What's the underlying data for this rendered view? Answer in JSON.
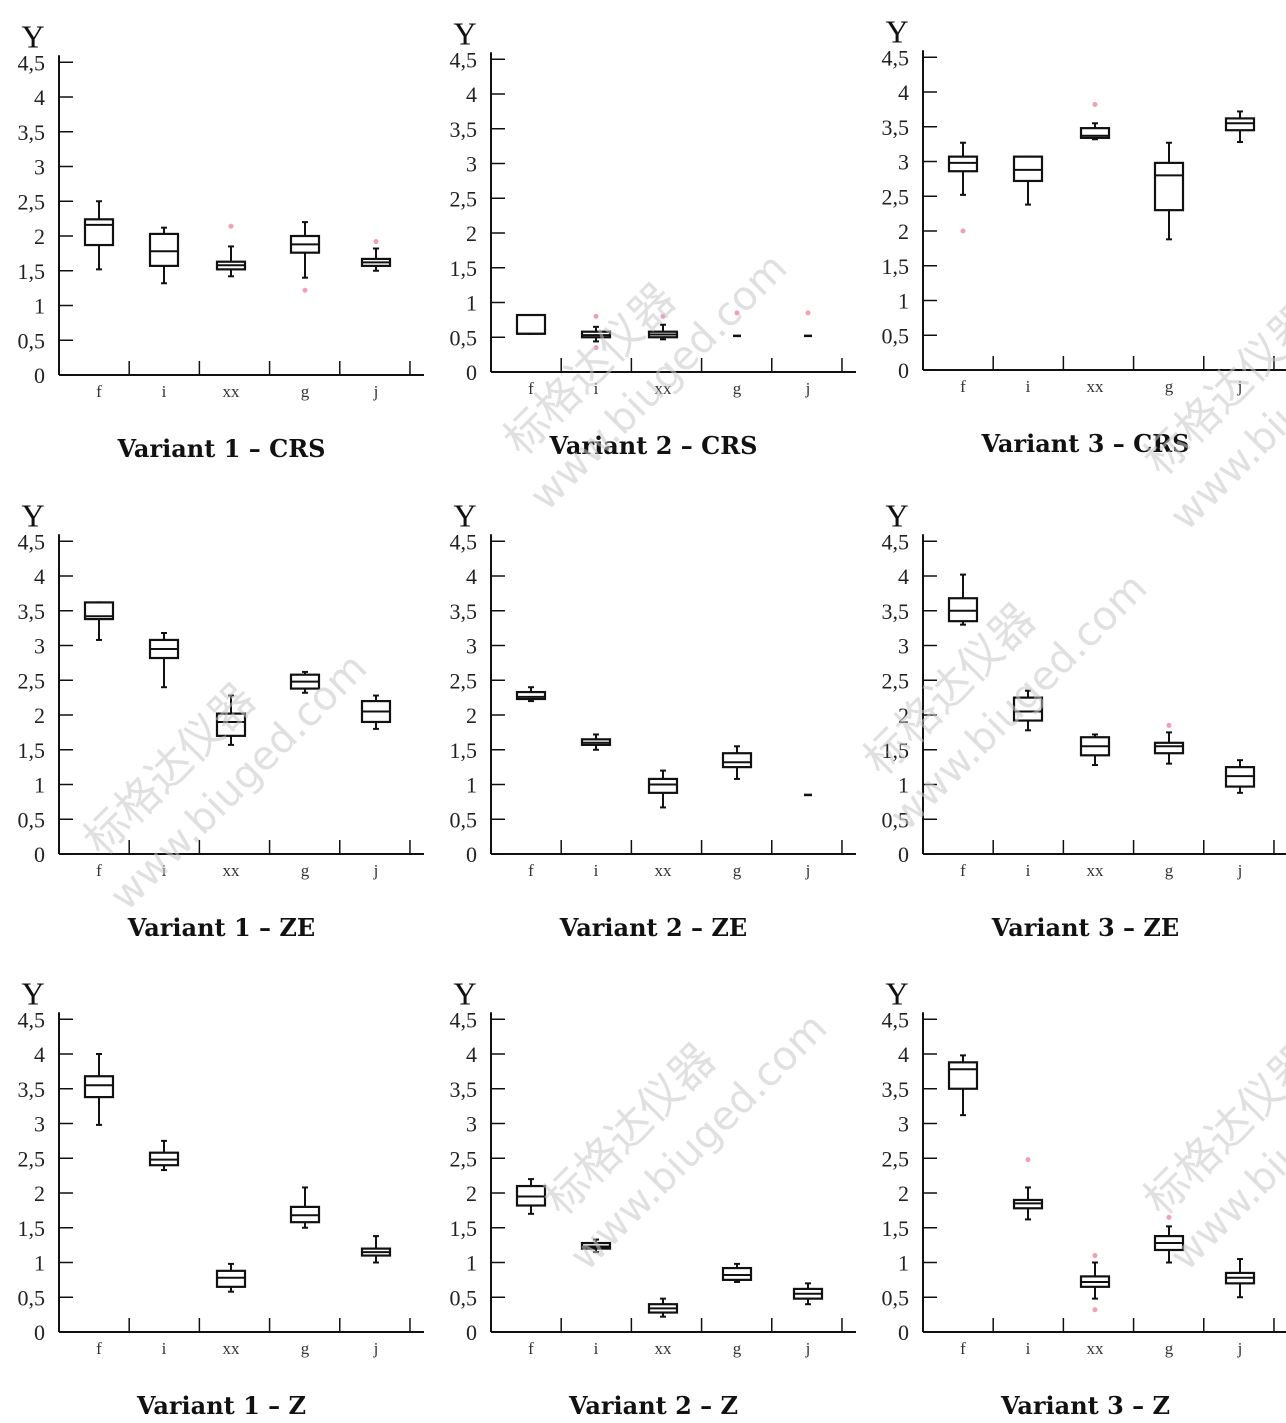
{
  "watermark": {
    "cn": "标格达仪器",
    "url": "www.biuged.com"
  },
  "chart_data": [
    {
      "type": "box",
      "title": "Variant 1 – CRS",
      "ylabel": "Y",
      "categories": [
        "f",
        "i",
        "xx",
        "g",
        "j"
      ],
      "y_ticks": [
        "0",
        "0,5",
        "1",
        "1,5",
        "2",
        "2,5",
        "3",
        "3,5",
        "4",
        "4,5"
      ],
      "ylim": [
        0,
        4.6
      ],
      "boxes": [
        {
          "min": 1.52,
          "q1": 1.87,
          "median": 2.16,
          "q3": 2.24,
          "max": 2.5,
          "outliers": []
        },
        {
          "min": 1.32,
          "q1": 1.57,
          "median": 1.78,
          "q3": 2.03,
          "max": 2.12,
          "outliers": []
        },
        {
          "min": 1.42,
          "q1": 1.52,
          "median": 1.58,
          "q3": 1.63,
          "max": 1.85,
          "outliers": [
            2.14
          ]
        },
        {
          "min": 1.4,
          "q1": 1.76,
          "median": 1.88,
          "q3": 2.0,
          "max": 2.2,
          "outliers": [
            1.22
          ]
        },
        {
          "min": 1.5,
          "q1": 1.57,
          "median": 1.62,
          "q3": 1.67,
          "max": 1.82,
          "outliers": [
            1.92
          ]
        }
      ]
    },
    {
      "type": "box",
      "title": "Variant 2 – CRS",
      "ylabel": "Y",
      "categories": [
        "f",
        "i",
        "xx",
        "g",
        "j"
      ],
      "y_ticks": [
        "0",
        "0,5",
        "1",
        "1,5",
        "2",
        "2,5",
        "3",
        "3,5",
        "4",
        "4,5"
      ],
      "ylim": [
        0,
        4.6
      ],
      "boxes": [
        {
          "min": 0.55,
          "q1": 0.55,
          "median": 0.55,
          "q3": 0.82,
          "max": 0.82,
          "outliers": []
        },
        {
          "min": 0.44,
          "q1": 0.5,
          "median": 0.53,
          "q3": 0.58,
          "max": 0.65,
          "outliers": [
            0.35,
            0.8
          ]
        },
        {
          "min": 0.47,
          "q1": 0.5,
          "median": 0.54,
          "q3": 0.58,
          "max": 0.68,
          "outliers": [
            0.8
          ]
        },
        {
          "min": 0.52,
          "q1": 0.52,
          "median": 0.52,
          "q3": 0.52,
          "max": 0.52,
          "outliers": [
            0.85
          ]
        },
        {
          "min": 0.52,
          "q1": 0.52,
          "median": 0.52,
          "q3": 0.52,
          "max": 0.52,
          "outliers": [
            0.85
          ]
        }
      ]
    },
    {
      "type": "box",
      "title": "Variant 3 – CRS",
      "ylabel": "Y",
      "categories": [
        "f",
        "i",
        "xx",
        "g",
        "j"
      ],
      "y_ticks": [
        "0",
        "0,5",
        "1",
        "1,5",
        "2",
        "2,5",
        "3",
        "3,5",
        "4",
        "4,5"
      ],
      "ylim": [
        0,
        4.6
      ],
      "boxes": [
        {
          "min": 2.52,
          "q1": 2.86,
          "median": 2.98,
          "q3": 3.07,
          "max": 3.27,
          "outliers": [
            2.0
          ]
        },
        {
          "min": 2.38,
          "q1": 2.72,
          "median": 2.88,
          "q3": 3.07,
          "max": 3.07,
          "outliers": []
        },
        {
          "min": 3.32,
          "q1": 3.34,
          "median": 3.37,
          "q3": 3.48,
          "max": 3.55,
          "outliers": [
            3.82
          ]
        },
        {
          "min": 1.88,
          "q1": 2.3,
          "median": 2.8,
          "q3": 2.98,
          "max": 3.27,
          "outliers": []
        },
        {
          "min": 3.28,
          "q1": 3.45,
          "median": 3.55,
          "q3": 3.62,
          "max": 3.72,
          "outliers": []
        }
      ]
    },
    {
      "type": "box",
      "title": "Variant 1 – ZE",
      "ylabel": "Y",
      "categories": [
        "f",
        "i",
        "xx",
        "g",
        "j"
      ],
      "y_ticks": [
        "0",
        "0,5",
        "1",
        "1,5",
        "2",
        "2,5",
        "3",
        "3,5",
        "4",
        "4,5"
      ],
      "ylim": [
        0,
        4.6
      ],
      "boxes": [
        {
          "min": 3.08,
          "q1": 3.38,
          "median": 3.42,
          "q3": 3.62,
          "max": 3.62,
          "outliers": []
        },
        {
          "min": 2.4,
          "q1": 2.82,
          "median": 2.95,
          "q3": 3.08,
          "max": 3.18,
          "outliers": []
        },
        {
          "min": 1.57,
          "q1": 1.7,
          "median": 1.9,
          "q3": 2.02,
          "max": 2.28,
          "outliers": []
        },
        {
          "min": 2.32,
          "q1": 2.38,
          "median": 2.48,
          "q3": 2.58,
          "max": 2.62,
          "outliers": []
        },
        {
          "min": 1.8,
          "q1": 1.9,
          "median": 2.05,
          "q3": 2.2,
          "max": 2.28,
          "outliers": []
        }
      ]
    },
    {
      "type": "box",
      "title": "Variant 2 – ZE",
      "ylabel": "Y",
      "categories": [
        "f",
        "i",
        "xx",
        "g",
        "j"
      ],
      "y_ticks": [
        "0",
        "0,5",
        "1",
        "1,5",
        "2",
        "2,5",
        "3",
        "3,5",
        "4",
        "4,5"
      ],
      "ylim": [
        0,
        4.6
      ],
      "boxes": [
        {
          "min": 2.2,
          "q1": 2.23,
          "median": 2.26,
          "q3": 2.33,
          "max": 2.4,
          "outliers": []
        },
        {
          "min": 1.5,
          "q1": 1.57,
          "median": 1.6,
          "q3": 1.65,
          "max": 1.72,
          "outliers": []
        },
        {
          "min": 0.67,
          "q1": 0.88,
          "median": 1.0,
          "q3": 1.08,
          "max": 1.2,
          "outliers": []
        },
        {
          "min": 1.08,
          "q1": 1.25,
          "median": 1.32,
          "q3": 1.45,
          "max": 1.55,
          "outliers": []
        },
        {
          "min": 0.85,
          "q1": 0.85,
          "median": 0.85,
          "q3": 0.85,
          "max": 0.85,
          "outliers": []
        }
      ]
    },
    {
      "type": "box",
      "title": "Variant 3 – ZE",
      "ylabel": "Y",
      "categories": [
        "f",
        "i",
        "xx",
        "g",
        "j"
      ],
      "y_ticks": [
        "0",
        "0,5",
        "1",
        "1,5",
        "2",
        "2,5",
        "3",
        "3,5",
        "4",
        "4,5"
      ],
      "ylim": [
        0,
        4.6
      ],
      "boxes": [
        {
          "min": 3.3,
          "q1": 3.35,
          "median": 3.5,
          "q3": 3.68,
          "max": 4.02,
          "outliers": []
        },
        {
          "min": 1.78,
          "q1": 1.92,
          "median": 2.05,
          "q3": 2.25,
          "max": 2.35,
          "outliers": []
        },
        {
          "min": 1.28,
          "q1": 1.42,
          "median": 1.55,
          "q3": 1.68,
          "max": 1.72,
          "outliers": []
        },
        {
          "min": 1.3,
          "q1": 1.45,
          "median": 1.55,
          "q3": 1.6,
          "max": 1.75,
          "outliers": [
            1.85
          ]
        },
        {
          "min": 0.88,
          "q1": 0.97,
          "median": 1.12,
          "q3": 1.25,
          "max": 1.35,
          "outliers": []
        }
      ]
    },
    {
      "type": "box",
      "title": "Variant 1 – Z",
      "ylabel": "Y",
      "categories": [
        "f",
        "i",
        "xx",
        "g",
        "j"
      ],
      "y_ticks": [
        "0",
        "0,5",
        "1",
        "1,5",
        "2",
        "2,5",
        "3",
        "3,5",
        "4",
        "4,5"
      ],
      "ylim": [
        0,
        4.6
      ],
      "boxes": [
        {
          "min": 2.98,
          "q1": 3.38,
          "median": 3.55,
          "q3": 3.68,
          "max": 4.0,
          "outliers": []
        },
        {
          "min": 2.33,
          "q1": 2.4,
          "median": 2.48,
          "q3": 2.58,
          "max": 2.75,
          "outliers": []
        },
        {
          "min": 0.58,
          "q1": 0.65,
          "median": 0.78,
          "q3": 0.88,
          "max": 0.98,
          "outliers": []
        },
        {
          "min": 1.5,
          "q1": 1.58,
          "median": 1.68,
          "q3": 1.8,
          "max": 2.08,
          "outliers": []
        },
        {
          "min": 1.0,
          "q1": 1.1,
          "median": 1.15,
          "q3": 1.2,
          "max": 1.38,
          "outliers": []
        }
      ]
    },
    {
      "type": "box",
      "title": "Variant 2 – Z",
      "ylabel": "Y",
      "categories": [
        "f",
        "i",
        "xx",
        "g",
        "j"
      ],
      "y_ticks": [
        "0",
        "0,5",
        "1",
        "1,5",
        "2",
        "2,5",
        "3",
        "3,5",
        "4",
        "4,5"
      ],
      "ylim": [
        0,
        4.6
      ],
      "boxes": [
        {
          "min": 1.7,
          "q1": 1.82,
          "median": 1.95,
          "q3": 2.1,
          "max": 2.2,
          "outliers": []
        },
        {
          "min": 1.15,
          "q1": 1.2,
          "median": 1.23,
          "q3": 1.28,
          "max": 1.33,
          "outliers": []
        },
        {
          "min": 0.22,
          "q1": 0.28,
          "median": 0.34,
          "q3": 0.4,
          "max": 0.48,
          "outliers": []
        },
        {
          "min": 0.72,
          "q1": 0.75,
          "median": 0.82,
          "q3": 0.92,
          "max": 0.98,
          "outliers": []
        },
        {
          "min": 0.4,
          "q1": 0.48,
          "median": 0.55,
          "q3": 0.62,
          "max": 0.7,
          "outliers": []
        }
      ]
    },
    {
      "type": "box",
      "title": "Variant 3 – Z",
      "ylabel": "Y",
      "categories": [
        "f",
        "i",
        "xx",
        "g",
        "j"
      ],
      "y_ticks": [
        "0",
        "0,5",
        "1",
        "1,5",
        "2",
        "2,5",
        "3",
        "3,5",
        "4",
        "4,5"
      ],
      "ylim": [
        0,
        4.6
      ],
      "boxes": [
        {
          "min": 3.12,
          "q1": 3.5,
          "median": 3.78,
          "q3": 3.88,
          "max": 3.98,
          "outliers": []
        },
        {
          "min": 1.62,
          "q1": 1.78,
          "median": 1.85,
          "q3": 1.9,
          "max": 2.08,
          "outliers": [
            2.48
          ]
        },
        {
          "min": 0.48,
          "q1": 0.65,
          "median": 0.72,
          "q3": 0.8,
          "max": 1.0,
          "outliers": [
            0.32,
            1.1
          ]
        },
        {
          "min": 1.0,
          "q1": 1.18,
          "median": 1.28,
          "q3": 1.38,
          "max": 1.52,
          "outliers": [
            1.65
          ]
        },
        {
          "min": 0.5,
          "q1": 0.7,
          "median": 0.78,
          "q3": 0.85,
          "max": 1.05,
          "outliers": []
        }
      ]
    }
  ]
}
